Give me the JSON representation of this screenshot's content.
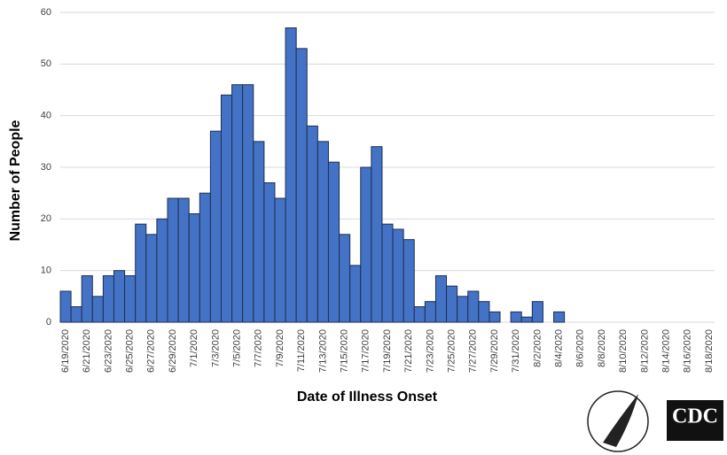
{
  "chart_data": {
    "type": "bar",
    "xlabel": "Date of Illness Onset",
    "ylabel": "Number of People",
    "categories": [
      "6/19/2020",
      null,
      "6/21/2020",
      null,
      "6/23/2020",
      null,
      "6/25/2020",
      null,
      "6/27/2020",
      null,
      "6/29/2020",
      null,
      "7/1/2020",
      null,
      "7/3/2020",
      null,
      "7/5/2020",
      null,
      "7/7/2020",
      null,
      "7/9/2020",
      null,
      "7/11/2020",
      null,
      "7/13/2020",
      null,
      "7/15/2020",
      null,
      "7/17/2020",
      null,
      "7/19/2020",
      null,
      "7/21/2020",
      null,
      "7/23/2020",
      null,
      "7/25/2020",
      null,
      "7/27/2020",
      null,
      "7/29/2020",
      null,
      "7/31/2020",
      null,
      "8/2/2020",
      null,
      "8/4/2020",
      null,
      "8/6/2020",
      null,
      "8/8/2020",
      null,
      "8/10/2020",
      null,
      "8/12/2020",
      null,
      "8/14/2020",
      null,
      "8/16/2020",
      null,
      "8/18/2020"
    ],
    "values": [
      6,
      3,
      9,
      5,
      9,
      10,
      9,
      19,
      17,
      20,
      24,
      24,
      21,
      25,
      37,
      44,
      46,
      46,
      35,
      27,
      24,
      57,
      53,
      38,
      35,
      31,
      17,
      11,
      30,
      34,
      19,
      18,
      16,
      3,
      4,
      9,
      7,
      5,
      6,
      4,
      2,
      0,
      2,
      1,
      4,
      0,
      2,
      0,
      0,
      0,
      0,
      0,
      0,
      0,
      0,
      0,
      0,
      0,
      0,
      0,
      0
    ],
    "color": "#4472c4",
    "ylim": [
      0,
      60
    ],
    "yticks": [
      0,
      10,
      20,
      30,
      40,
      50,
      60
    ],
    "grid": true
  },
  "logo_text": "CDC"
}
